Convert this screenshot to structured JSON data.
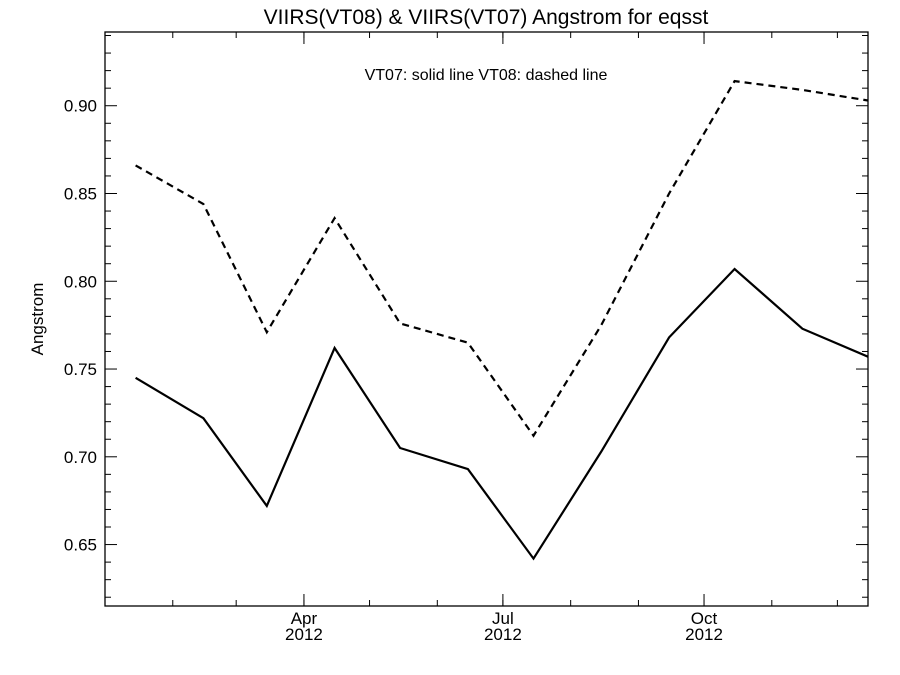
{
  "chart_data": {
    "type": "line",
    "title": "VIIRS(VT08) & VIIRS(VT07)  Angstrom for eqsst",
    "ylabel": "Angstrom",
    "xlabel": "",
    "annotation": "VT07: solid line   VT08: dashed line",
    "x": [
      "2012-01-15",
      "2012-02-15",
      "2012-03-15",
      "2012-04-15",
      "2012-05-15",
      "2012-06-15",
      "2012-07-15",
      "2012-08-15",
      "2012-09-15",
      "2012-10-15",
      "2012-11-15",
      "2012-12-15"
    ],
    "xlim": [
      "2012-01-01",
      "2012-12-15"
    ],
    "ylim": [
      0.615,
      0.942
    ],
    "y_ticks": [
      "0.65",
      "0.70",
      "0.75",
      "0.80",
      "0.85",
      "0.90"
    ],
    "x_ticks": [
      {
        "month": "Apr",
        "year": "2012",
        "date": "2012-04-01"
      },
      {
        "month": "Jul",
        "year": "2012",
        "date": "2012-07-01"
      },
      {
        "month": "Oct",
        "year": "2012",
        "date": "2012-10-01"
      }
    ],
    "series": [
      {
        "name": "VT07",
        "style": "solid",
        "color": "#000000",
        "values": [
          0.745,
          0.722,
          0.672,
          0.762,
          0.705,
          0.693,
          0.642,
          0.703,
          0.768,
          0.807,
          0.773,
          0.757
        ]
      },
      {
        "name": "VT08",
        "style": "dashed",
        "color": "#000000",
        "values": [
          0.866,
          0.844,
          0.771,
          0.836,
          0.776,
          0.765,
          0.712,
          0.775,
          0.85,
          0.914,
          0.909,
          0.903
        ]
      }
    ],
    "grid": false,
    "legend": "none"
  }
}
